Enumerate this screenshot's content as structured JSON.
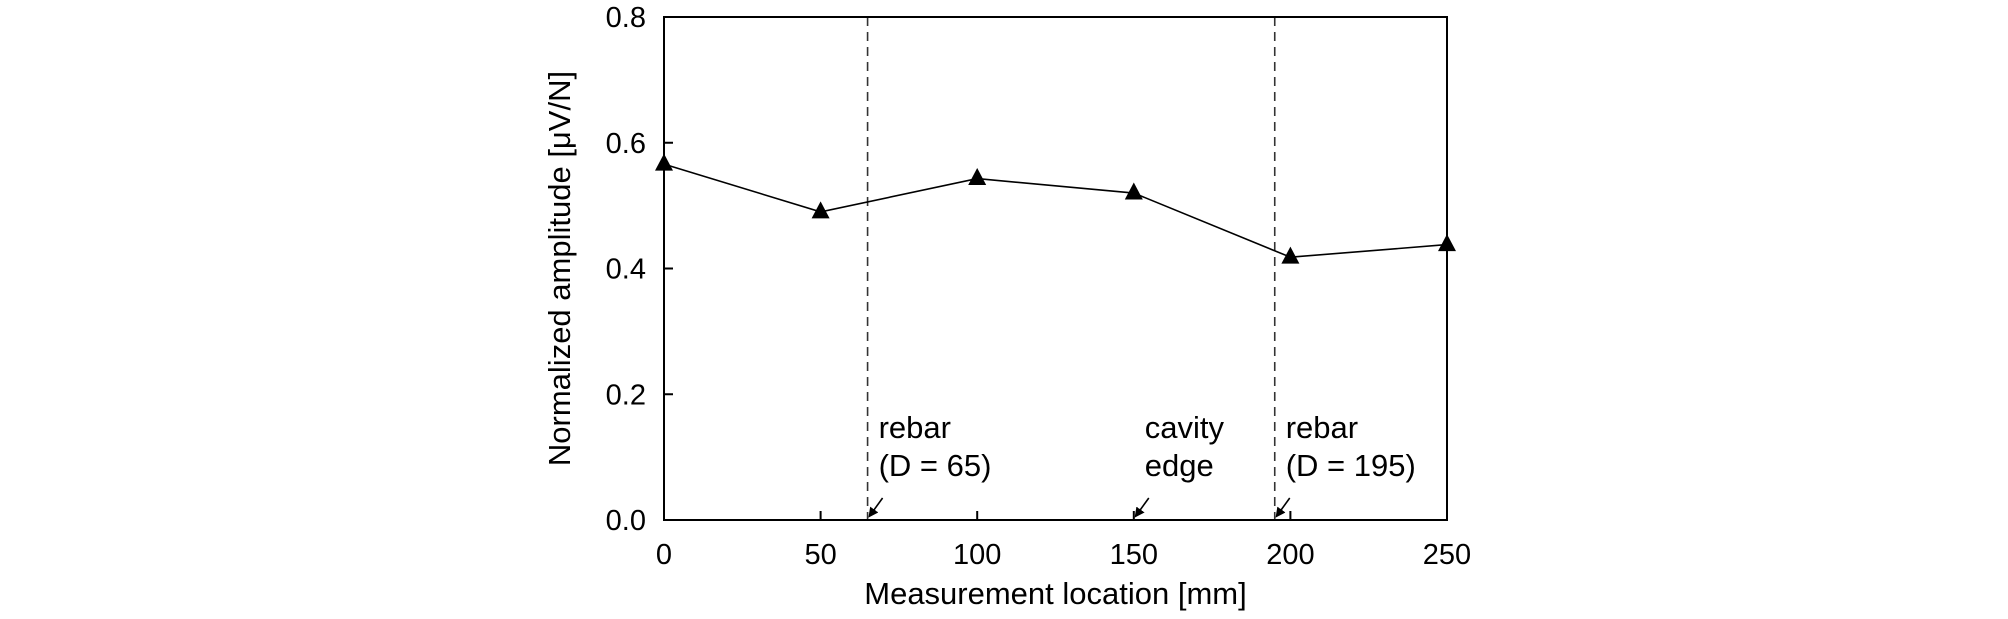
{
  "chart_data": {
    "type": "line",
    "title": "",
    "xlabel": "Measurement location [mm]",
    "ylabel": "Normalized amplitude [μV/N]",
    "xlim": [
      0,
      250
    ],
    "ylim": [
      0,
      0.8
    ],
    "grid": false,
    "x_ticks": [
      0,
      50,
      100,
      150,
      200,
      250
    ],
    "x_tick_labels": [
      "0",
      "50",
      "100",
      "150",
      "200",
      "250"
    ],
    "y_ticks": [
      0,
      0.2,
      0.4,
      0.6,
      0.8
    ],
    "y_tick_labels": [
      "0.0",
      "0.2",
      "0.4",
      "0.6",
      "0.8"
    ],
    "series": [
      {
        "name": "Normalized amplitude",
        "marker": "triangle",
        "color": "#000000",
        "x": [
          0,
          50,
          100,
          150,
          200,
          250
        ],
        "y": [
          0.566,
          0.49,
          0.543,
          0.52,
          0.418,
          0.438
        ]
      }
    ],
    "reference_lines": [
      {
        "x": 65,
        "style": "dashed"
      },
      {
        "x": 195,
        "style": "dashed"
      }
    ],
    "annotations": [
      {
        "lines": [
          "rebar",
          "(D = 65)"
        ],
        "x": 65
      },
      {
        "lines": [
          "cavity",
          "edge"
        ],
        "x": 150
      },
      {
        "lines": [
          "rebar",
          "(D = 195)"
        ],
        "x": 195
      }
    ]
  }
}
